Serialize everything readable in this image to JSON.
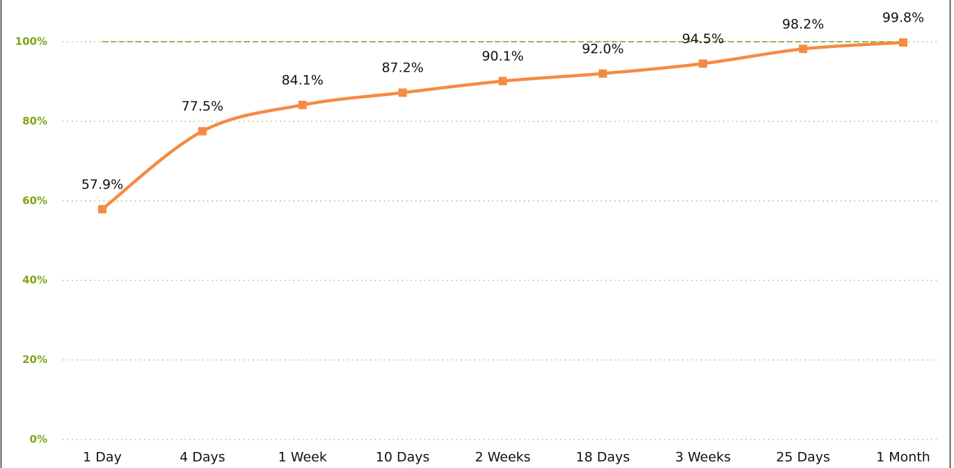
{
  "chart_data": {
    "type": "line",
    "categories": [
      "1 Day",
      "4 Days",
      "1 Week",
      "10 Days",
      "2 Weeks",
      "18 Days",
      "3 Weeks",
      "25 Days",
      "1 Month"
    ],
    "series": [
      {
        "color": "#f58b43",
        "values": [
          57.9,
          77.5,
          84.1,
          87.2,
          90.1,
          92.0,
          94.5,
          98.2,
          99.8
        ],
        "value_labels": [
          "57.9%",
          "77.5%",
          "84.1%",
          "87.2%",
          "90.1%",
          "92.0%",
          "94.5%",
          "98.2%",
          "99.8%"
        ]
      }
    ],
    "ylim": [
      0,
      100
    ],
    "yticks": [
      {
        "value": 0,
        "label": "0%"
      },
      {
        "value": 20,
        "label": "20%"
      },
      {
        "value": 40,
        "label": "40%"
      },
      {
        "value": 60,
        "label": "60%"
      },
      {
        "value": 80,
        "label": "80%"
      },
      {
        "value": 100,
        "label": "100%"
      }
    ],
    "grid": true,
    "grid_color": "#9bbb2a",
    "reference_line": {
      "value": 100,
      "color": "#7a9a1c"
    }
  }
}
